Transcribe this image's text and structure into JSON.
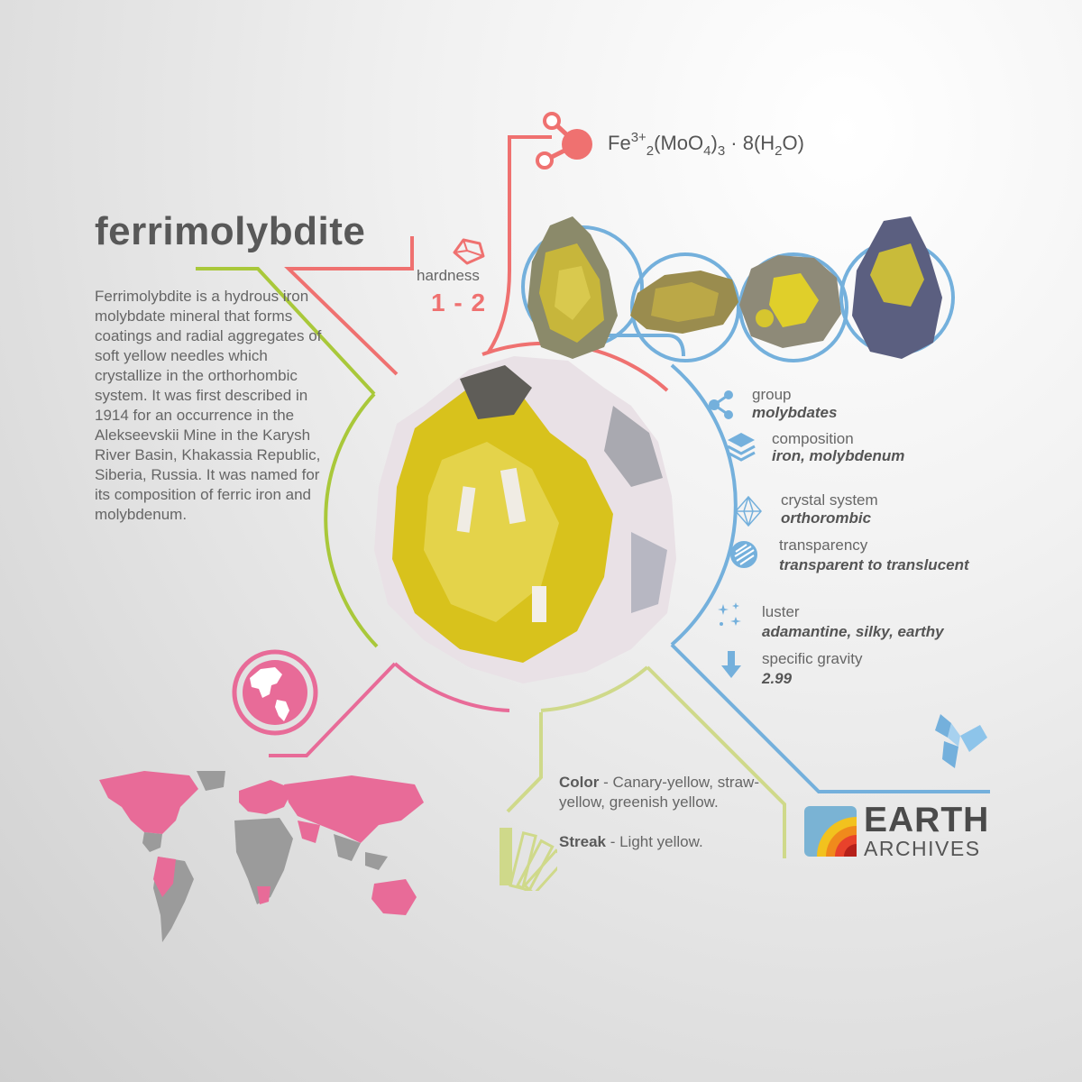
{
  "mineral": {
    "name": "ferrimolybdite",
    "description": "Ferrimolybdite is a hydrous iron molybdate mineral that forms coatings and radial aggregates of soft yellow needles which crystallize in the orthorhombic system. It was first described in 1914 for an occurrence in the Alekseevskii Mine in the Karysh River Basin, Khakassia Republic, Siberia, Russia. It was named for its composition of ferric iron and molybdenum."
  },
  "formula": {
    "fe": "Fe",
    "charge": "3+",
    "sub_fe": "2",
    "mo": "(MoO",
    "sub_o": "4",
    "close": ")",
    "sub_3": "3",
    "dot": " · 8(H",
    "sub_h": "2",
    "tail": "O)"
  },
  "hardness": {
    "label": "hardness",
    "value": "1 - 2"
  },
  "properties": {
    "group": {
      "label": "group",
      "value": "molybdates"
    },
    "composition": {
      "label": "composition",
      "value": "iron, molybdenum"
    },
    "crystal_system": {
      "label": "crystal system",
      "value": "orthorombic"
    },
    "transparency": {
      "label": "transparency",
      "value": "transparent to translucent"
    },
    "luster": {
      "label": "luster",
      "value": "adamantine, silky, earthy"
    },
    "specific_gravity": {
      "label": "specific gravity",
      "value": "2.99"
    }
  },
  "color_streak": {
    "color_label": "Color",
    "color_value": " - Canary-yellow, straw-yellow, greenish yellow.",
    "streak_label": "Streak",
    "streak_value": " - Light yellow."
  },
  "logo": {
    "line1": "EARTH",
    "line2": "ARCHIVES"
  },
  "colors": {
    "pink": "#ef7170",
    "magenta": "#e86b98",
    "lime": "#a9c83a",
    "lime_light": "#cfd98a",
    "blue": "#74b0dc",
    "text": "#666666",
    "yellow_mineral": "#d8c21c"
  },
  "icons": [
    "molecule-icon",
    "hardness-icon",
    "group-icon",
    "composition-icon",
    "crystal-icon",
    "transparency-icon",
    "luster-icon",
    "gravity-icon",
    "globe-icon",
    "world-map-icon",
    "swatch-icon",
    "crystal-logo-icon"
  ]
}
